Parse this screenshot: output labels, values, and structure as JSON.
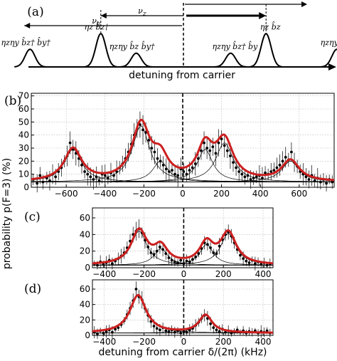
{
  "figure": {
    "ylabel": "probability p(F=3) (%)",
    "colors": {
      "fit": "#cc1f1f",
      "component": "#000000",
      "data": "#000000",
      "grid": "#b0b0b0"
    }
  },
  "schematic": {
    "panel_label": "(a)",
    "axis_label": "detuning from carrier",
    "nu_y": "ν",
    "nu_y_sub": "y",
    "nu_z": "ν",
    "nu_z_sub": "z",
    "sidebands": [
      {
        "pos": -2.6,
        "height": 0.45,
        "label": "ηzηy b̂z† b̂y†"
      },
      {
        "pos": -1.4,
        "height": 0.85,
        "label": "ηz b̂z†"
      },
      {
        "pos": -0.8,
        "height": 0.35,
        "label": "ηzηy b̂z b̂y†"
      },
      {
        "pos": 0.8,
        "height": 0.35,
        "label": "ηzηy b̂z† b̂y"
      },
      {
        "pos": 1.4,
        "height": 0.85,
        "label": "ηz b̂z"
      },
      {
        "pos": 2.6,
        "height": 0.45,
        "label": "ηzηy b̂z b̂y"
      }
    ]
  },
  "chart_data": [
    {
      "type": "line",
      "panel_label": "(b)",
      "xlim": [
        -780,
        780
      ],
      "ylim": [
        0,
        72
      ],
      "xticks": [
        -600,
        -400,
        -200,
        0,
        200,
        400,
        600
      ],
      "yticks": [
        0,
        10,
        20,
        30,
        40,
        50,
        60,
        70
      ],
      "baseline": 4,
      "components": [
        {
          "center": -565,
          "amplitude": 25,
          "width": 55
        },
        {
          "center": -215,
          "amplitude": 43,
          "width": 55
        },
        {
          "center": -115,
          "amplitude": 16,
          "width": 48
        },
        {
          "center": 115,
          "amplitude": 25,
          "width": 48
        },
        {
          "center": 215,
          "amplitude": 30,
          "width": 55
        },
        {
          "center": 555,
          "amplitude": 16,
          "width": 55
        }
      ],
      "points": [
        [
          -770,
          6
        ],
        [
          -750,
          3
        ],
        [
          -735,
          9
        ],
        [
          -720,
          4
        ],
        [
          -700,
          7
        ],
        [
          -685,
          5
        ],
        [
          -670,
          10
        ],
        [
          -655,
          8
        ],
        [
          -640,
          12
        ],
        [
          -625,
          15
        ],
        [
          -610,
          20
        ],
        [
          -595,
          24
        ],
        [
          -580,
          34
        ],
        [
          -565,
          29
        ],
        [
          -550,
          26
        ],
        [
          -535,
          22
        ],
        [
          -520,
          17
        ],
        [
          -505,
          12
        ],
        [
          -490,
          10
        ],
        [
          -475,
          8
        ],
        [
          -460,
          6
        ],
        [
          -445,
          8
        ],
        [
          -430,
          5
        ],
        [
          -415,
          10
        ],
        [
          -400,
          9
        ],
        [
          -385,
          7
        ],
        [
          -370,
          11
        ],
        [
          -355,
          9
        ],
        [
          -340,
          12
        ],
        [
          -325,
          15
        ],
        [
          -310,
          18
        ],
        [
          -295,
          22
        ],
        [
          -280,
          27
        ],
        [
          -265,
          33
        ],
        [
          -250,
          40
        ],
        [
          -235,
          45
        ],
        [
          -220,
          48
        ],
        [
          -205,
          44
        ],
        [
          -190,
          42
        ],
        [
          -175,
          36
        ],
        [
          -160,
          30
        ],
        [
          -145,
          27
        ],
        [
          -130,
          22
        ],
        [
          -115,
          20
        ],
        [
          -100,
          17
        ],
        [
          -85,
          14
        ],
        [
          -70,
          12
        ],
        [
          -55,
          13
        ],
        [
          -40,
          10
        ],
        [
          -25,
          9
        ],
        [
          -10,
          14
        ],
        [
          5,
          12
        ],
        [
          20,
          10
        ],
        [
          35,
          13
        ],
        [
          50,
          15
        ],
        [
          65,
          18
        ],
        [
          80,
          22
        ],
        [
          95,
          28
        ],
        [
          110,
          34
        ],
        [
          125,
          30
        ],
        [
          140,
          28
        ],
        [
          155,
          31
        ],
        [
          170,
          26
        ],
        [
          185,
          34
        ],
        [
          200,
          37
        ],
        [
          215,
          32
        ],
        [
          230,
          28
        ],
        [
          245,
          24
        ],
        [
          260,
          19
        ],
        [
          275,
          15
        ],
        [
          290,
          12
        ],
        [
          305,
          10
        ],
        [
          320,
          8
        ],
        [
          335,
          9
        ],
        [
          350,
          6
        ],
        [
          365,
          7
        ],
        [
          380,
          8
        ],
        [
          395,
          9
        ],
        [
          410,
          7
        ],
        [
          425,
          11
        ],
        [
          440,
          10
        ],
        [
          455,
          12
        ],
        [
          470,
          13
        ],
        [
          485,
          15
        ],
        [
          500,
          17
        ],
        [
          515,
          20
        ],
        [
          530,
          23
        ],
        [
          545,
          21
        ],
        [
          560,
          27
        ],
        [
          575,
          19
        ],
        [
          590,
          16
        ],
        [
          605,
          12
        ],
        [
          620,
          10
        ],
        [
          635,
          8
        ],
        [
          650,
          6
        ],
        [
          665,
          9
        ],
        [
          680,
          5
        ],
        [
          695,
          7
        ],
        [
          710,
          4
        ],
        [
          725,
          6
        ],
        [
          740,
          3
        ],
        [
          755,
          6
        ],
        [
          770,
          4
        ]
      ]
    },
    {
      "type": "line",
      "panel_label": "(c)",
      "xlim": [
        -460,
        450
      ],
      "ylim": [
        0,
        72
      ],
      "xticks": [
        -400,
        -200,
        0,
        200,
        400
      ],
      "yticks": [
        0,
        20,
        40,
        60
      ],
      "baseline": 3,
      "components": [
        {
          "center": -225,
          "amplitude": 41,
          "width": 48
        },
        {
          "center": -115,
          "amplitude": 20,
          "width": 42
        },
        {
          "center": 115,
          "amplitude": 25,
          "width": 42
        },
        {
          "center": 225,
          "amplitude": 38,
          "width": 48
        }
      ],
      "points": [
        [
          -450,
          5
        ],
        [
          -435,
          3
        ],
        [
          -420,
          7
        ],
        [
          -405,
          4
        ],
        [
          -390,
          6
        ],
        [
          -375,
          9
        ],
        [
          -360,
          5
        ],
        [
          -345,
          8
        ],
        [
          -330,
          11
        ],
        [
          -315,
          14
        ],
        [
          -300,
          18
        ],
        [
          -285,
          24
        ],
        [
          -270,
          32
        ],
        [
          -255,
          40
        ],
        [
          -240,
          44
        ],
        [
          -225,
          47
        ],
        [
          -210,
          42
        ],
        [
          -195,
          33
        ],
        [
          -180,
          25
        ],
        [
          -165,
          18
        ],
        [
          -150,
          16
        ],
        [
          -135,
          20
        ],
        [
          -120,
          25
        ],
        [
          -105,
          22
        ],
        [
          -90,
          17
        ],
        [
          -75,
          12
        ],
        [
          -60,
          9
        ],
        [
          -45,
          7
        ],
        [
          -30,
          6
        ],
        [
          -15,
          9
        ],
        [
          0,
          5
        ],
        [
          15,
          8
        ],
        [
          30,
          7
        ],
        [
          45,
          10
        ],
        [
          60,
          13
        ],
        [
          75,
          17
        ],
        [
          90,
          23
        ],
        [
          105,
          30
        ],
        [
          120,
          28
        ],
        [
          135,
          24
        ],
        [
          150,
          18
        ],
        [
          165,
          17
        ],
        [
          180,
          26
        ],
        [
          195,
          34
        ],
        [
          210,
          40
        ],
        [
          225,
          43
        ],
        [
          240,
          38
        ],
        [
          255,
          30
        ],
        [
          270,
          22
        ],
        [
          285,
          15
        ],
        [
          300,
          11
        ],
        [
          315,
          8
        ],
        [
          330,
          6
        ],
        [
          345,
          9
        ],
        [
          360,
          5
        ],
        [
          375,
          7
        ],
        [
          390,
          4
        ],
        [
          405,
          6
        ],
        [
          420,
          3
        ],
        [
          435,
          5
        ]
      ]
    },
    {
      "type": "line",
      "panel_label": "(d)",
      "xlim": [
        -460,
        450
      ],
      "ylim": [
        0,
        72
      ],
      "xticks": [
        -400,
        -200,
        0,
        200,
        400
      ],
      "yticks": [
        0,
        20,
        40,
        60
      ],
      "baseline": 3,
      "xlabel": "detuning from carrier δ/(2π) (kHz)",
      "components": [
        {
          "center": -230,
          "amplitude": 49,
          "width": 50
        },
        {
          "center": 110,
          "amplitude": 23,
          "width": 40
        }
      ],
      "points": [
        [
          -450,
          4
        ],
        [
          -435,
          2
        ],
        [
          -420,
          6
        ],
        [
          -405,
          3
        ],
        [
          -390,
          5
        ],
        [
          -375,
          7
        ],
        [
          -360,
          4
        ],
        [
          -345,
          8
        ],
        [
          -330,
          10
        ],
        [
          -315,
          14
        ],
        [
          -300,
          19
        ],
        [
          -285,
          27
        ],
        [
          -270,
          35
        ],
        [
          -255,
          45
        ],
        [
          -240,
          60
        ],
        [
          -225,
          50
        ],
        [
          -210,
          46
        ],
        [
          -195,
          35
        ],
        [
          -180,
          26
        ],
        [
          -165,
          18
        ],
        [
          -150,
          12
        ],
        [
          -135,
          9
        ],
        [
          -120,
          7
        ],
        [
          -105,
          10
        ],
        [
          -90,
          6
        ],
        [
          -75,
          5
        ],
        [
          -60,
          7
        ],
        [
          -45,
          4
        ],
        [
          -30,
          6
        ],
        [
          -15,
          3
        ],
        [
          0,
          5
        ],
        [
          15,
          4
        ],
        [
          30,
          7
        ],
        [
          45,
          9
        ],
        [
          60,
          13
        ],
        [
          75,
          17
        ],
        [
          90,
          22
        ],
        [
          105,
          26
        ],
        [
          120,
          22
        ],
        [
          135,
          15
        ],
        [
          150,
          10
        ],
        [
          165,
          7
        ],
        [
          180,
          5
        ],
        [
          195,
          8
        ],
        [
          210,
          4
        ],
        [
          225,
          6
        ],
        [
          240,
          3
        ],
        [
          255,
          5
        ],
        [
          270,
          7
        ],
        [
          285,
          4
        ],
        [
          300,
          6
        ],
        [
          315,
          3
        ],
        [
          330,
          5
        ],
        [
          345,
          4
        ],
        [
          360,
          6
        ],
        [
          375,
          3
        ],
        [
          390,
          5
        ],
        [
          405,
          4
        ],
        [
          420,
          6
        ],
        [
          435,
          3
        ]
      ]
    }
  ]
}
